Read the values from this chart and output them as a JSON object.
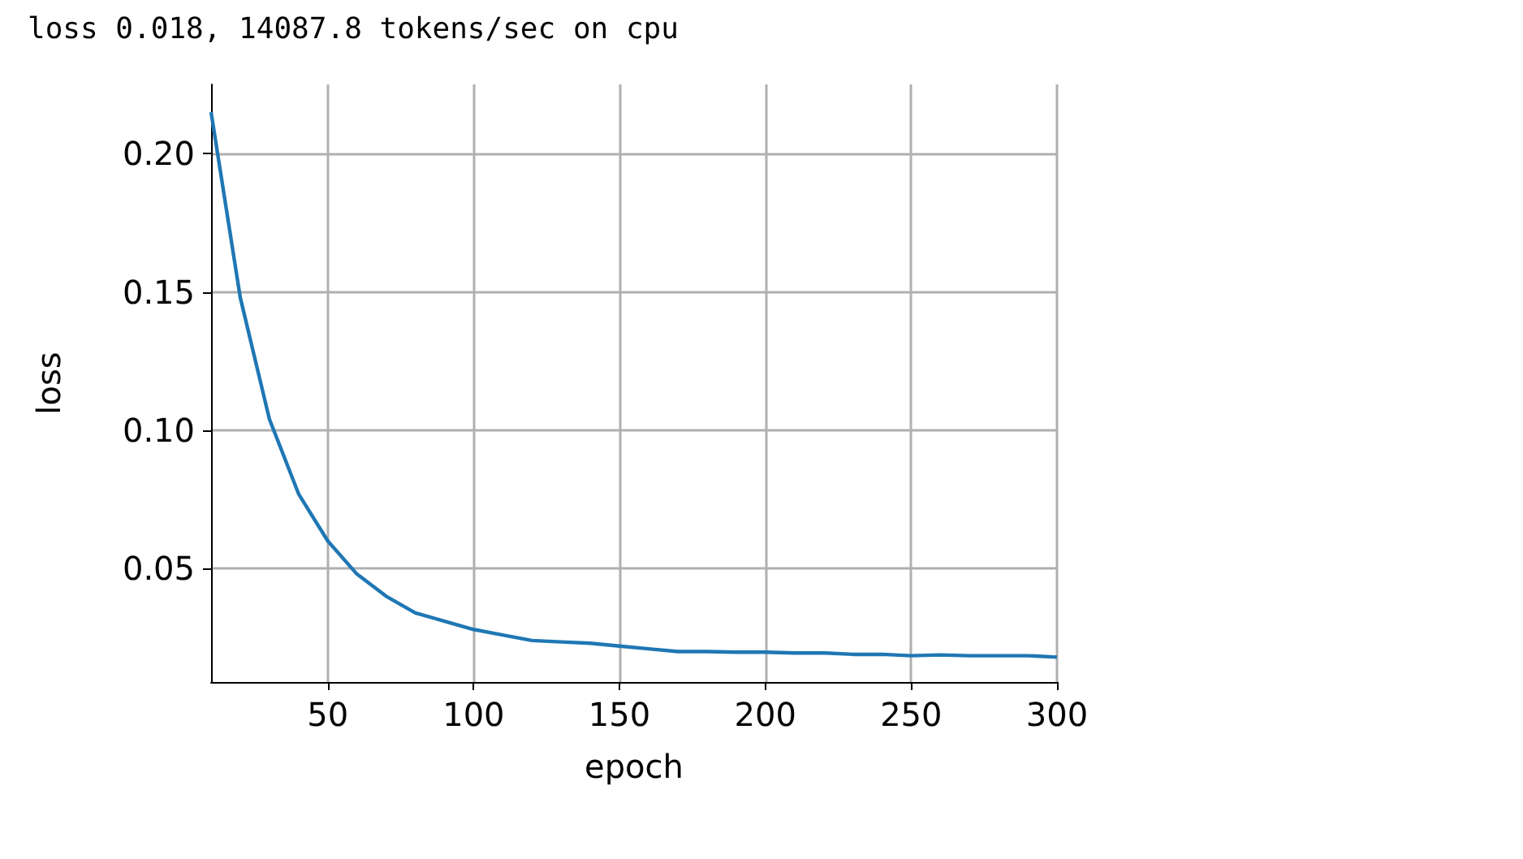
{
  "chart_data": {
    "type": "line",
    "title": "loss 0.018, 14087.8 tokens/sec on cpu",
    "xlabel": "epoch",
    "ylabel": "loss",
    "x": [
      10,
      20,
      30,
      40,
      50,
      60,
      70,
      80,
      90,
      100,
      110,
      120,
      130,
      140,
      150,
      160,
      170,
      180,
      190,
      200,
      210,
      220,
      230,
      240,
      250,
      260,
      270,
      280,
      290,
      300
    ],
    "series": [
      {
        "color": "#1f77b4",
        "values": [
          0.215,
          0.148,
          0.104,
          0.077,
          0.06,
          0.048,
          0.04,
          0.034,
          0.031,
          0.028,
          0.026,
          0.024,
          0.0235,
          0.023,
          0.022,
          0.021,
          0.02,
          0.02,
          0.0198,
          0.0198,
          0.0195,
          0.0195,
          0.019,
          0.019,
          0.0185,
          0.0188,
          0.0185,
          0.0185,
          0.0185,
          0.018
        ]
      }
    ],
    "xlim": [
      10,
      300
    ],
    "xticks": [
      50,
      100,
      150,
      200,
      250,
      300
    ],
    "ylim": [
      0.009,
      0.225
    ],
    "yticks": [
      0.05,
      {
        "value": 0.1,
        "label": "0.10"
      },
      0.15,
      {
        "value": 0.2,
        "label": "0.20"
      }
    ],
    "grid": true,
    "marker": "none",
    "line_style": "solid"
  }
}
